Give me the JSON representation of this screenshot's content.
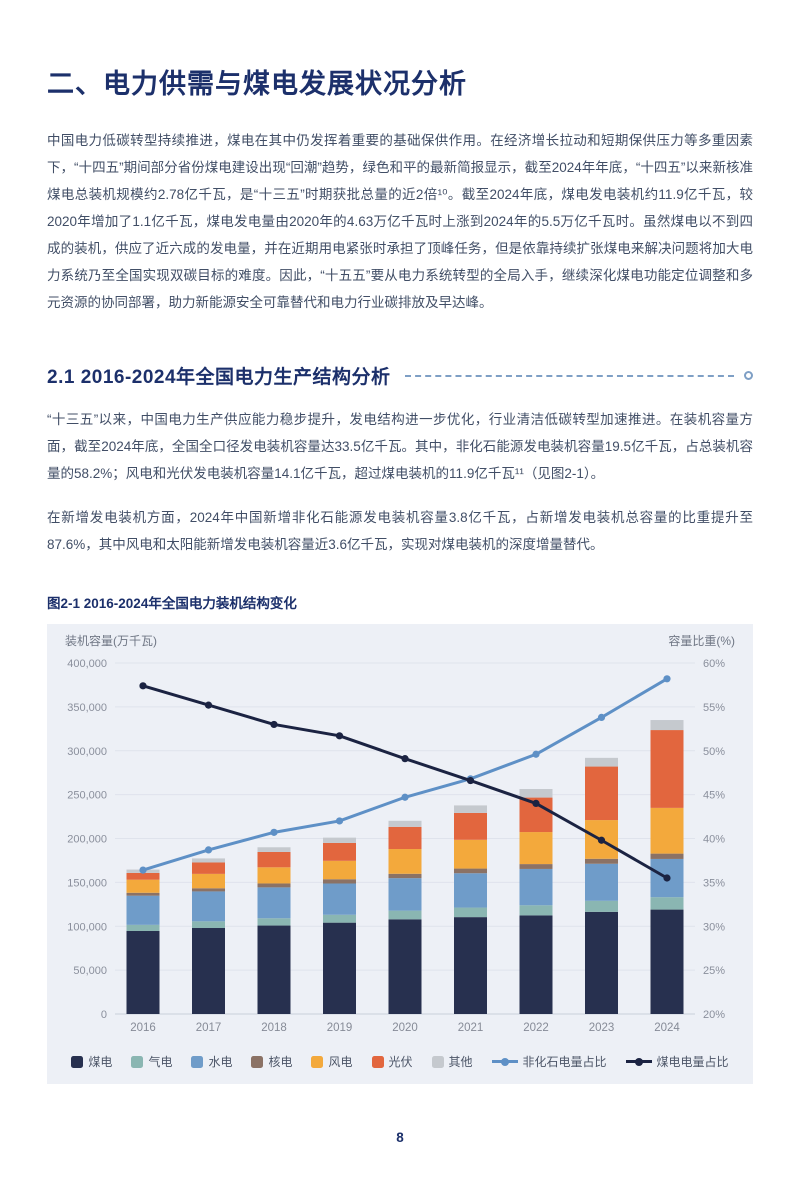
{
  "page": {
    "title": "二、电力供需与煤电发展状况分析",
    "paragraph_1": "中国电力低碳转型持续推进，煤电在其中仍发挥着重要的基础保供作用。在经济增长拉动和短期保供压力等多重因素下，“十四五”期间部分省份煤电建设出现“回潮”趋势，绿色和平的最新简报显示，截至2024年年底，“十四五”以来新核准煤电总装机规模约2.78亿千瓦，是“十三五”时期获批总量的近2倍¹⁰。截至2024年底，煤电发电装机约11.9亿千瓦，较2020年增加了1.1亿千瓦，煤电发电量由2020年的4.63万亿千瓦时上涨到2024年的5.5万亿千瓦时。虽然煤电以不到四成的装机，供应了近六成的发电量，并在近期用电紧张时承担了顶峰任务，但是依靠持续扩张煤电来解决问题将加大电力系统乃至全国实现双碳目标的难度。因此，“十五五”要从电力系统转型的全局入手，继续深化煤电功能定位调整和多元资源的协同部署，助力新能源安全可靠替代和电力行业碳排放及早达峰。",
    "section_title": "2.1 2016-2024年全国电力生产结构分析",
    "paragraph_2": "“十三五”以来，中国电力生产供应能力稳步提升，发电结构进一步优化，行业清洁低碳转型加速推进。在装机容量方面，截至2024年底，全国全口径发电装机容量达33.5亿千瓦。其中，非化石能源发电装机容量19.5亿千瓦，占总装机容量的58.2%；风电和光伏发电装机容量14.1亿千瓦，超过煤电装机的11.9亿千瓦¹¹（见图2-1）。",
    "paragraph_3": "在新增发电装机方面，2024年中国新增非化石能源发电装机容量3.8亿千瓦，占新增发电装机总容量的比重提升至87.6%，其中风电和太阳能新增发电装机容量近3.6亿千瓦，实现对煤电装机的深度增量替代。",
    "figure_caption": "图2-1 2016-2024年全国电力装机结构变化",
    "page_number": "8"
  },
  "chart_data": {
    "type": "bar",
    "subtype": "stacked-bars-with-two-lines",
    "title": "图2-1 2016-2024年全国电力装机结构变化",
    "categories": [
      "2016",
      "2017",
      "2018",
      "2019",
      "2020",
      "2021",
      "2022",
      "2023",
      "2024"
    ],
    "left_axis": {
      "label": "装机容量(万千瓦)",
      "min": 0,
      "max": 400000,
      "step": 50000
    },
    "right_axis": {
      "label": "容量比重(%)",
      "min": 20,
      "max": 60,
      "step": 5,
      "unit": "%"
    },
    "grid": true,
    "legend_position": "bottom",
    "series": [
      {
        "name": "煤电",
        "kind": "bar",
        "color": "#27304f",
        "values": [
          94600,
          98000,
          100800,
          104100,
          107900,
          110400,
          112400,
          116400,
          119000
        ]
      },
      {
        "name": "气电",
        "kind": "bar",
        "color": "#8ab6b2",
        "values": [
          7000,
          7600,
          8300,
          9000,
          9900,
          10900,
          11500,
          12600,
          14100
        ]
      },
      {
        "name": "水电",
        "kind": "bar",
        "color": "#6f9cc9",
        "values": [
          33200,
          34100,
          35200,
          35600,
          37000,
          39100,
          41400,
          42200,
          43600
        ]
      },
      {
        "name": "核电",
        "kind": "bar",
        "color": "#8b7265",
        "values": [
          3360,
          3580,
          4470,
          4870,
          5000,
          5330,
          5550,
          5690,
          6080
        ]
      },
      {
        "name": "风电",
        "kind": "bar",
        "color": "#f3a93c",
        "values": [
          14900,
          16400,
          18400,
          21000,
          28200,
          32800,
          36500,
          44100,
          52100
        ]
      },
      {
        "name": "光伏",
        "kind": "bar",
        "color": "#e2663e",
        "values": [
          7700,
          13000,
          17500,
          20400,
          25300,
          30600,
          39300,
          61000,
          88700
        ]
      },
      {
        "name": "其他",
        "kind": "bar",
        "color": "#c5c9ce",
        "values": [
          3840,
          4620,
          5330,
          6030,
          6900,
          8570,
          9750,
          9910,
          11420
        ]
      },
      {
        "name": "非化石电量占比",
        "kind": "line",
        "axis": "right",
        "color": "#5e90c6",
        "values": [
          36.4,
          38.7,
          40.7,
          42.0,
          44.7,
          46.8,
          49.6,
          53.8,
          58.2
        ]
      },
      {
        "name": "煤电电量占比",
        "kind": "line",
        "axis": "right",
        "color": "#1b2342",
        "values": [
          57.4,
          55.2,
          53.0,
          51.7,
          49.1,
          46.6,
          44.0,
          39.8,
          35.5
        ]
      }
    ],
    "bar_totals": [
      164600,
      177300,
      190000,
      201000,
      220200,
      237700,
      256400,
      291900,
      335000
    ]
  },
  "colors": {
    "heading": "#1c306b",
    "body_text": "#414e66",
    "dash_accent": "#7e9fc5",
    "panel_bg": "#edf0f6",
    "grid_line": "#dfe3ec",
    "tick_text": "#8a8f9c"
  }
}
